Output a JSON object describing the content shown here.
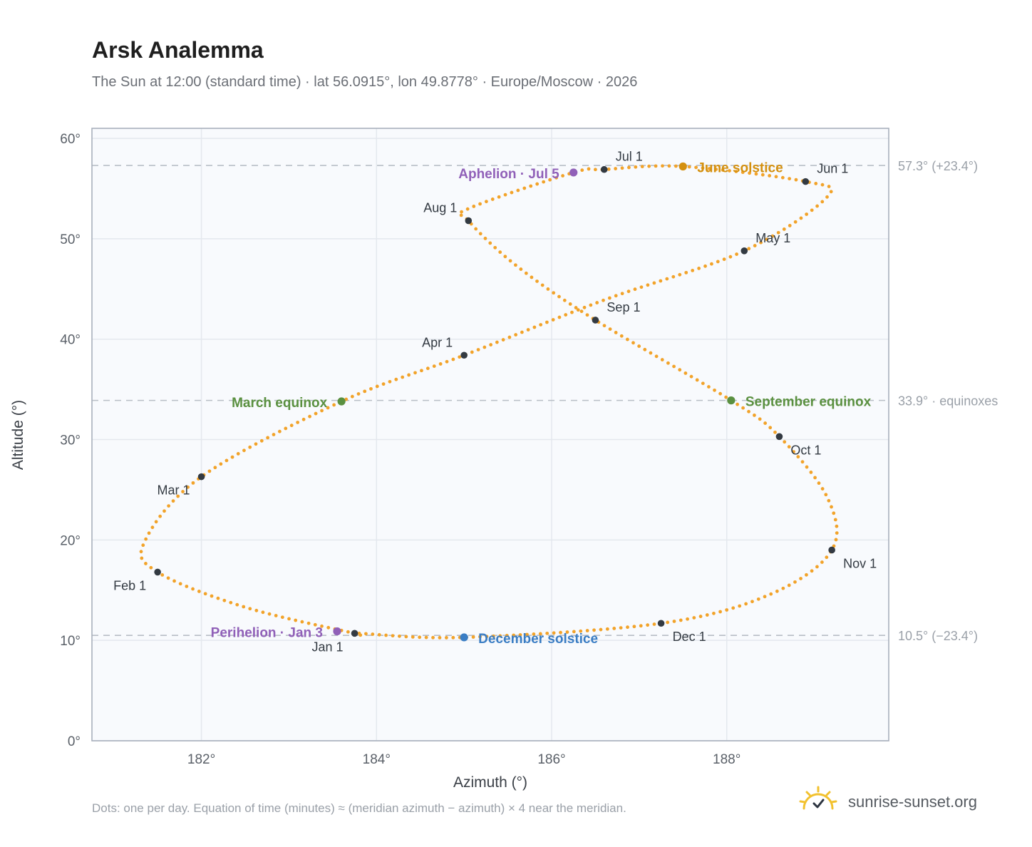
{
  "title": "Arsk Analemma",
  "subtitle": "The Sun at 12:00 (standard time) · lat 56.0915°, lon 49.8778° · Europe/Moscow · 2026",
  "footnote": "Dots: one per day. Equation of time (minutes) ≈ (meridian azimuth − azimuth) × 4 near the meridian.",
  "brand": {
    "name": "sunrise-sunset.org",
    "icon": "sun-check-icon"
  },
  "colors": {
    "dots": "#f2a32a",
    "month_marker": "#333a42",
    "solstice_june": "#d4900f",
    "solstice_december": "#3a7dc4",
    "equinox": "#5a9040",
    "apsis": "#9060b8",
    "ref_line": "#b8bec6",
    "plot_bg": "#f8fafd",
    "grid": "#e4e8ee"
  },
  "chart_data": {
    "type": "scatter",
    "xlabel": "Azimuth (°)",
    "ylabel": "Altitude (°)",
    "xlim": [
      180.75,
      189.85
    ],
    "ylim": [
      0,
      61
    ],
    "xticks": [
      182,
      184,
      186,
      188
    ],
    "xtick_labels": [
      "182°",
      "184°",
      "186°",
      "188°"
    ],
    "yticks": [
      0,
      10,
      20,
      30,
      40,
      50,
      60
    ],
    "ytick_labels": [
      "0°",
      "10°",
      "20°",
      "30°",
      "40°",
      "50°",
      "60°"
    ],
    "grid": true,
    "reference_lines": [
      {
        "y": 57.3,
        "label": "57.3° (+23.4°)"
      },
      {
        "y": 33.9,
        "label": "33.9° · equinoxes"
      },
      {
        "y": 10.5,
        "label": "10.5° (−23.4°)"
      }
    ],
    "path_anchors": [
      {
        "date": "Jan 1",
        "az": 183.75,
        "alt": 10.7
      },
      {
        "date": "Jan 16",
        "az": 182.5,
        "alt": 13.3
      },
      {
        "date": "Feb 1",
        "az": 181.5,
        "alt": 16.8
      },
      {
        "date": "Feb 12",
        "az": 181.35,
        "alt": 19.8
      },
      {
        "date": "Mar 1",
        "az": 182.0,
        "alt": 26.3
      },
      {
        "date": "Mar 20",
        "az": 183.6,
        "alt": 33.8
      },
      {
        "date": "Apr 1",
        "az": 185.0,
        "alt": 38.4
      },
      {
        "date": "Apr 15",
        "az": 186.6,
        "alt": 43.9
      },
      {
        "date": "May 1",
        "az": 188.2,
        "alt": 48.8
      },
      {
        "date": "May 14",
        "az": 189.15,
        "alt": 54.2
      },
      {
        "date": "Jun 1",
        "az": 188.9,
        "alt": 55.7
      },
      {
        "date": "Jun 21",
        "az": 187.5,
        "alt": 57.2
      },
      {
        "date": "Jul 1",
        "az": 186.6,
        "alt": 56.9
      },
      {
        "date": "Jul 5",
        "az": 186.25,
        "alt": 56.6
      },
      {
        "date": "Jul 26",
        "az": 185.05,
        "alt": 53.0
      },
      {
        "date": "Aug 1",
        "az": 185.05,
        "alt": 51.8
      },
      {
        "date": "Aug 15",
        "az": 185.6,
        "alt": 47.3
      },
      {
        "date": "Sep 1",
        "az": 186.5,
        "alt": 41.9
      },
      {
        "date": "Sep 22",
        "az": 188.05,
        "alt": 33.9
      },
      {
        "date": "Oct 1",
        "az": 188.6,
        "alt": 30.3
      },
      {
        "date": "Oct 16",
        "az": 189.15,
        "alt": 24.2
      },
      {
        "date": "Nov 3",
        "az": 189.25,
        "alt": 21.0
      },
      {
        "date": "Nov 1",
        "az": 189.2,
        "alt": 19.0
      },
      {
        "date": "Nov 15",
        "az": 188.5,
        "alt": 14.6
      },
      {
        "date": "Dec 1",
        "az": 187.25,
        "alt": 11.7
      },
      {
        "date": "Dec 21",
        "az": 185.0,
        "alt": 10.3
      },
      {
        "date": "Dec 31",
        "az": 183.8,
        "alt": 10.7
      }
    ],
    "month_markers": [
      {
        "label": "Jan 1",
        "az": 183.75,
        "alt": 10.7,
        "anchor": "below-left"
      },
      {
        "label": "Feb 1",
        "az": 181.5,
        "alt": 16.8,
        "anchor": "below-left"
      },
      {
        "label": "Mar 1",
        "az": 182.0,
        "alt": 26.3,
        "anchor": "below-left"
      },
      {
        "label": "Apr 1",
        "az": 185.0,
        "alt": 38.4,
        "anchor": "above-left"
      },
      {
        "label": "May 1",
        "az": 188.2,
        "alt": 48.8,
        "anchor": "above-right"
      },
      {
        "label": "Jun 1",
        "az": 188.9,
        "alt": 55.7,
        "anchor": "above-right"
      },
      {
        "label": "Jul 1",
        "az": 186.6,
        "alt": 56.9,
        "anchor": "above-right"
      },
      {
        "label": "Aug 1",
        "az": 185.05,
        "alt": 51.8,
        "anchor": "above-left"
      },
      {
        "label": "Sep 1",
        "az": 186.5,
        "alt": 41.9,
        "anchor": "above-right"
      },
      {
        "label": "Oct 1",
        "az": 188.6,
        "alt": 30.3,
        "anchor": "below-right"
      },
      {
        "label": "Nov 1",
        "az": 189.2,
        "alt": 19.0,
        "anchor": "below-right"
      },
      {
        "label": "Dec 1",
        "az": 187.25,
        "alt": 11.7,
        "anchor": "below-right"
      }
    ],
    "events": [
      {
        "label": "June solstice",
        "az": 187.5,
        "alt": 57.2,
        "kind": "solstice_june",
        "side": "right"
      },
      {
        "label": "December solstice",
        "az": 185.0,
        "alt": 10.3,
        "kind": "solstice_december",
        "side": "right"
      },
      {
        "label": "March equinox",
        "az": 183.6,
        "alt": 33.8,
        "kind": "equinox",
        "side": "left"
      },
      {
        "label": "September equinox",
        "az": 188.05,
        "alt": 33.9,
        "kind": "equinox",
        "side": "right"
      },
      {
        "label": "Aphelion · Jul 5",
        "az": 186.25,
        "alt": 56.6,
        "kind": "apsis",
        "side": "left"
      },
      {
        "label": "Perihelion · Jan 3",
        "az": 183.55,
        "alt": 10.9,
        "kind": "apsis",
        "side": "left"
      }
    ]
  }
}
